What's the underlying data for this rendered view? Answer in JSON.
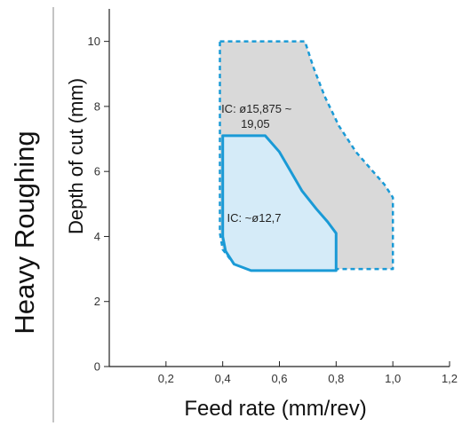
{
  "section_title": "Heavy Roughing",
  "chart_data": {
    "type": "area",
    "xlabel": "Feed rate (mm/rev)",
    "ylabel": "Depth of cut (mm)",
    "xlim": [
      0,
      1.2
    ],
    "ylim": [
      0,
      11
    ],
    "x_ticks": [
      0.2,
      0.4,
      0.6,
      0.8,
      1.0,
      1.2
    ],
    "x_tick_labels": [
      "0,2",
      "0,4",
      "0,6",
      "0,8",
      "1,0",
      "1,2"
    ],
    "y_ticks": [
      0,
      2,
      4,
      6,
      8,
      10
    ],
    "y_tick_labels": [
      "0",
      "2",
      "4",
      "6",
      "8",
      "10"
    ],
    "grid": false,
    "colors": {
      "large_fill": "#d9d9d9",
      "small_fill": "#d5ebf8",
      "outline": "#1a9ad6"
    },
    "regions": [
      {
        "name": "IC: ø15,875 ~ 19,05",
        "label_lines": [
          "IC: ø15,875 ~",
          "19,05"
        ],
        "style": "dashed",
        "boundary": [
          [
            0.39,
            10.0
          ],
          [
            0.69,
            10.0
          ],
          [
            0.72,
            9.2
          ],
          [
            0.76,
            8.3
          ],
          [
            0.81,
            7.4
          ],
          [
            0.87,
            6.6
          ],
          [
            0.93,
            6.0
          ],
          [
            0.97,
            5.6
          ],
          [
            1.0,
            5.2
          ],
          [
            1.0,
            3.0
          ],
          [
            0.5,
            3.0
          ],
          [
            0.44,
            3.15
          ],
          [
            0.4,
            3.6
          ],
          [
            0.39,
            4.1
          ]
        ]
      },
      {
        "name": "IC: ~ø12,7",
        "label_lines": [
          "IC: ~ø12,7"
        ],
        "style": "solid",
        "boundary": [
          [
            0.4,
            7.1
          ],
          [
            0.55,
            7.1
          ],
          [
            0.6,
            6.6
          ],
          [
            0.64,
            6.0
          ],
          [
            0.68,
            5.4
          ],
          [
            0.73,
            4.85
          ],
          [
            0.77,
            4.45
          ],
          [
            0.8,
            4.1
          ],
          [
            0.8,
            2.95
          ],
          [
            0.5,
            2.95
          ],
          [
            0.44,
            3.15
          ],
          [
            0.41,
            3.55
          ],
          [
            0.4,
            4.0
          ]
        ]
      }
    ]
  }
}
